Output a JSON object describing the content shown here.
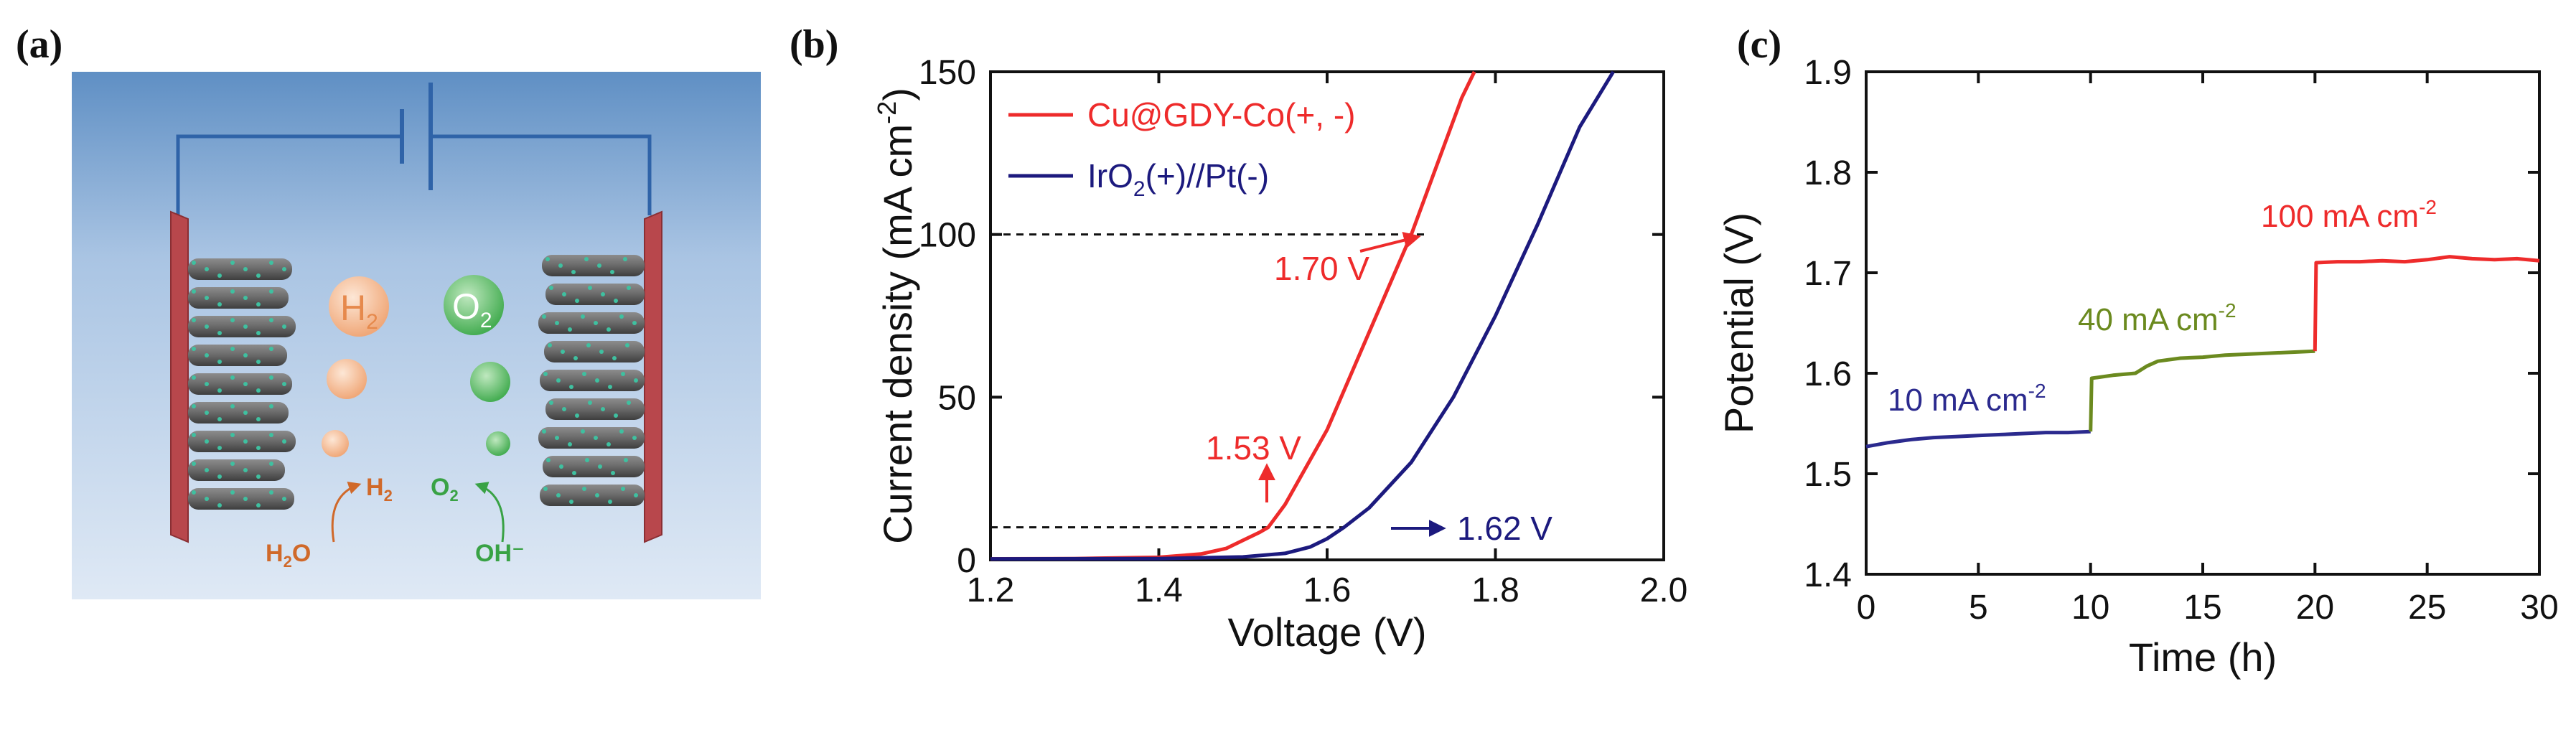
{
  "panels": {
    "a": {
      "label": "(a)",
      "species": {
        "h2_bubble": "H",
        "h2_bubble_sub": "2",
        "o2_bubble": "O",
        "o2_bubble_sub": "2",
        "h2o": "H",
        "h2o_sub": "2",
        "h2o_tail": "O",
        "h2_product": "H",
        "h2_product_sub": "2",
        "o2_product": "O",
        "o2_product_sub": "2",
        "oh": "OH⁻"
      },
      "colors": {
        "background_top": "#5f8fc4",
        "background_bottom": "#dfe9f5",
        "electrode": "#b8474c",
        "nanowire": "#6b6b6b",
        "dots": "#3fc0a0",
        "wire": "#2f63a8",
        "h2": "#e6894c",
        "o2": "#39a245"
      }
    },
    "b": {
      "label": "(b)"
    },
    "c": {
      "label": "(c)"
    }
  },
  "chart_data": [
    {
      "panel": "b",
      "type": "line",
      "title": "",
      "xlabel": "Voltage (V)",
      "ylabel": "Current density (mA cm",
      "ylabel_sup": "-2",
      "ylabel_close": ")",
      "xlim": [
        1.2,
        2.0
      ],
      "ylim": [
        0,
        150
      ],
      "xticks": [
        1.2,
        1.4,
        1.6,
        1.8,
        2.0
      ],
      "xtick_labels": [
        "1.2",
        "1.4",
        "1.6",
        "1.8",
        "2.0"
      ],
      "yticks": [
        0,
        50,
        100,
        150
      ],
      "ytick_labels": [
        "0",
        "50",
        "100",
        "150"
      ],
      "legend_position": "top-left",
      "series": [
        {
          "name": "Cu@GDY-Co(+, -)",
          "legend_parts": [
            "Cu@GDY-Co(+, -)"
          ],
          "color": "#ee2b2b",
          "x": [
            1.2,
            1.3,
            1.4,
            1.45,
            1.48,
            1.5,
            1.52,
            1.53,
            1.55,
            1.6,
            1.65,
            1.7,
            1.73,
            1.76,
            1.775
          ],
          "y": [
            0.3,
            0.4,
            0.8,
            1.8,
            3.5,
            6,
            8.5,
            10,
            17,
            40,
            70,
            100,
            121,
            142,
            150
          ]
        },
        {
          "name": "IrO2(+)//Pt(-)",
          "legend_parts": [
            "IrO",
            "2",
            "(+)//Pt(-)"
          ],
          "color": "#1c1a7e",
          "x": [
            1.2,
            1.4,
            1.5,
            1.55,
            1.58,
            1.6,
            1.62,
            1.65,
            1.7,
            1.75,
            1.8,
            1.85,
            1.9,
            1.94
          ],
          "y": [
            0.3,
            0.4,
            0.9,
            2,
            4,
            6.5,
            10,
            16,
            30,
            50,
            75,
            103,
            133,
            150
          ]
        }
      ],
      "reference_lines": [
        {
          "y": 100,
          "x_start": 1.2,
          "x_end": 1.72
        },
        {
          "y": 10,
          "x_start": 1.2,
          "x_end": 1.62
        }
      ],
      "annotations": [
        {
          "text": "1.70 V",
          "color": "#ee2b2b",
          "x": 1.7,
          "y": 100
        },
        {
          "text": "1.53 V",
          "color": "#ee2b2b",
          "x": 1.53,
          "y": 10
        },
        {
          "text": "1.62 V",
          "color": "#1c1a7e",
          "x": 1.62,
          "y": 10
        }
      ]
    },
    {
      "panel": "c",
      "type": "line",
      "title": "",
      "xlabel": "Time (h)",
      "ylabel": "Potential (V)",
      "xlim": [
        0,
        30
      ],
      "ylim": [
        1.4,
        1.9
      ],
      "xticks": [
        0,
        5,
        10,
        15,
        20,
        25,
        30
      ],
      "xtick_labels": [
        "0",
        "5",
        "10",
        "15",
        "20",
        "25",
        "30"
      ],
      "yticks": [
        1.4,
        1.5,
        1.6,
        1.7,
        1.8,
        1.9
      ],
      "ytick_labels": [
        "1.4",
        "1.5",
        "1.6",
        "1.7",
        "1.8",
        "1.9"
      ],
      "series": [
        {
          "name": "10 mA cm-2",
          "label_base": "10 mA cm",
          "label_sup": "-2",
          "color": "#2b2a8e",
          "x": [
            0,
            1,
            2,
            3,
            4,
            5,
            6,
            7,
            8,
            9,
            10
          ],
          "y": [
            1.527,
            1.531,
            1.534,
            1.536,
            1.537,
            1.538,
            1.539,
            1.54,
            1.541,
            1.541,
            1.542
          ]
        },
        {
          "name": "40 mA cm-2",
          "label_base": "40 mA cm",
          "label_sup": "-2",
          "color": "#6b8a1f",
          "x": [
            10,
            10.05,
            11,
            12,
            12.5,
            13,
            14,
            15,
            16,
            17,
            18,
            19,
            20
          ],
          "y": [
            1.542,
            1.595,
            1.598,
            1.6,
            1.607,
            1.612,
            1.615,
            1.616,
            1.618,
            1.619,
            1.62,
            1.621,
            1.622
          ]
        },
        {
          "name": "100 mA cm-2",
          "label_base": "100 mA cm",
          "label_sup": "-2",
          "color": "#ee2b2b",
          "x": [
            20,
            20.05,
            21,
            22,
            23,
            24,
            25,
            26,
            27,
            28,
            29,
            30
          ],
          "y": [
            1.622,
            1.71,
            1.711,
            1.711,
            1.712,
            1.711,
            1.713,
            1.716,
            1.714,
            1.713,
            1.714,
            1.712
          ]
        }
      ]
    }
  ]
}
